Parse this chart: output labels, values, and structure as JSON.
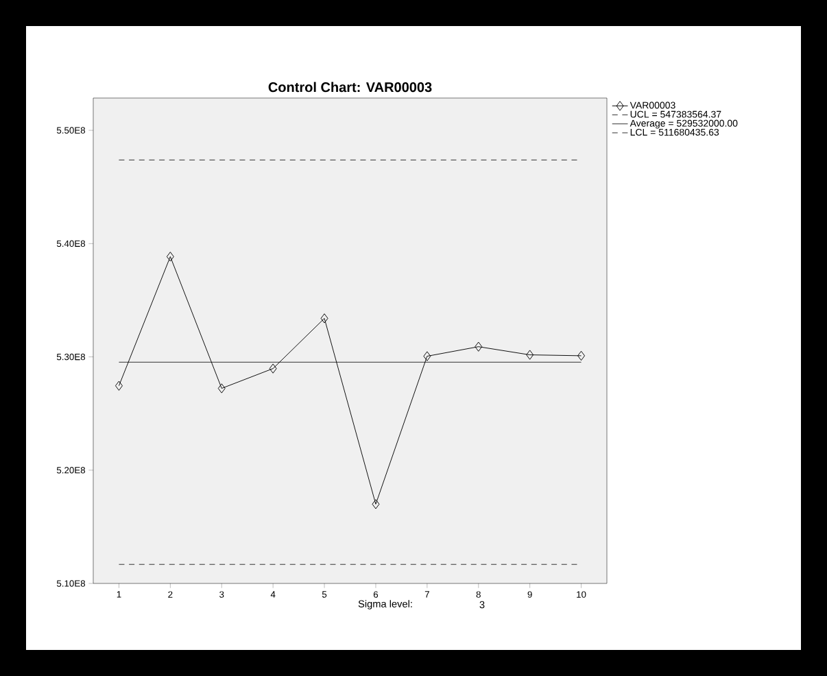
{
  "chart_data": {
    "type": "line",
    "title": "Control Chart: VAR00003",
    "x": [
      1,
      2,
      3,
      4,
      5,
      6,
      7,
      8,
      9,
      10
    ],
    "series": [
      {
        "name": "VAR00003",
        "color": "#000000",
        "values": [
          527450000,
          538850000,
          527220000,
          528970000,
          533400000,
          517000000,
          530060000,
          530900000,
          530180000,
          530100000
        ]
      }
    ],
    "xlim": [
      0.5,
      10.5
    ],
    "xticks": [
      1,
      2,
      3,
      4,
      5,
      6,
      7,
      8,
      9,
      10
    ],
    "ylim": [
      510000000,
      552850000
    ],
    "yticks": [
      {
        "value": 510000000,
        "label": "5.10E8"
      },
      {
        "value": 520000000,
        "label": "5.20E8"
      },
      {
        "value": 530000000,
        "label": "5.30E8"
      },
      {
        "value": 540000000,
        "label": "5.40E8"
      },
      {
        "value": 550000000,
        "label": "5.50E8"
      }
    ],
    "ref_lines": [
      {
        "axis": "y",
        "value": 547383564.37,
        "label": "UCL = 547383564.37",
        "color": "#000000",
        "line_style": "dashed"
      },
      {
        "axis": "y",
        "value": 529532000.0,
        "label": "Average = 529532000.00",
        "color": "#000000",
        "line_style": "solid"
      },
      {
        "axis": "y",
        "value": 511680435.63,
        "label": "LCL = 511680435.63",
        "color": "#000000",
        "line_style": "dashed"
      }
    ],
    "annotations": [
      "Sigma level:",
      "3"
    ],
    "marker": "diamond",
    "line_style": "solid",
    "grid": false,
    "legend": "top right"
  }
}
